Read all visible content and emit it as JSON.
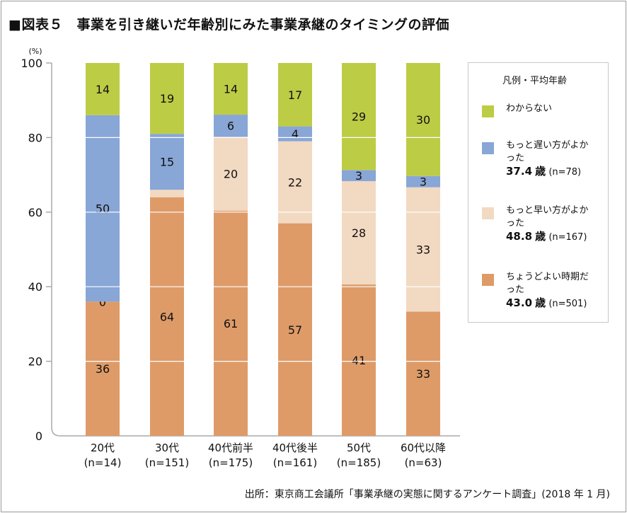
{
  "title": "■図表５　事業を引き継いだ年齢別にみた事業承継のタイミングの評価",
  "source": "出所：東京商工会議所「事業承継の実態に関するアンケート調査」(2018 年 1 月)",
  "chart_data": {
    "type": "bar",
    "stacked": true,
    "ylabel": "(%)",
    "ylim": [
      0,
      100
    ],
    "yticks": [
      0,
      20,
      40,
      60,
      80,
      100
    ],
    "grid": true,
    "legend_position": "right",
    "legend_title": "凡例・平均年齢",
    "categories": [
      "20代",
      "30代",
      "40代前半",
      "40代後半",
      "50代",
      "60代以降"
    ],
    "category_n": [
      "(n=14)",
      "(n=151)",
      "(n=175)",
      "(n=161)",
      "(n=185)",
      "(n=63)"
    ],
    "series": [
      {
        "name": "ちょうどよい時期だった",
        "avg_age": "43.0",
        "age_unit": "歳",
        "n": "(n=501)",
        "color": "#DE9B68",
        "values": [
          36,
          64,
          61,
          57,
          41,
          33
        ],
        "labels": [
          "36",
          "64",
          "61",
          "57",
          "41",
          "33"
        ]
      },
      {
        "name": "もっと早い方がよかった",
        "avg_age": "48.8",
        "age_unit": "歳",
        "n": "(n=167)",
        "color": "#F2D9C2",
        "values": [
          0,
          2,
          20,
          22,
          28,
          33
        ],
        "labels": [
          "0",
          "",
          "20",
          "22",
          "28",
          "33"
        ]
      },
      {
        "name": "もっと遅い方がよかった",
        "avg_age": "37.4",
        "age_unit": "歳",
        "n": "(n=78)",
        "color": "#88A6D6",
        "values": [
          50,
          15,
          6,
          4,
          3,
          3
        ],
        "labels": [
          "50",
          "15",
          "6",
          "4",
          "3",
          "3"
        ]
      },
      {
        "name": "わからない",
        "color": "#BDCC45",
        "values": [
          14,
          19,
          14,
          17,
          29,
          30
        ],
        "labels": [
          "14",
          "19",
          "14",
          "17",
          "29",
          "30"
        ]
      }
    ]
  }
}
